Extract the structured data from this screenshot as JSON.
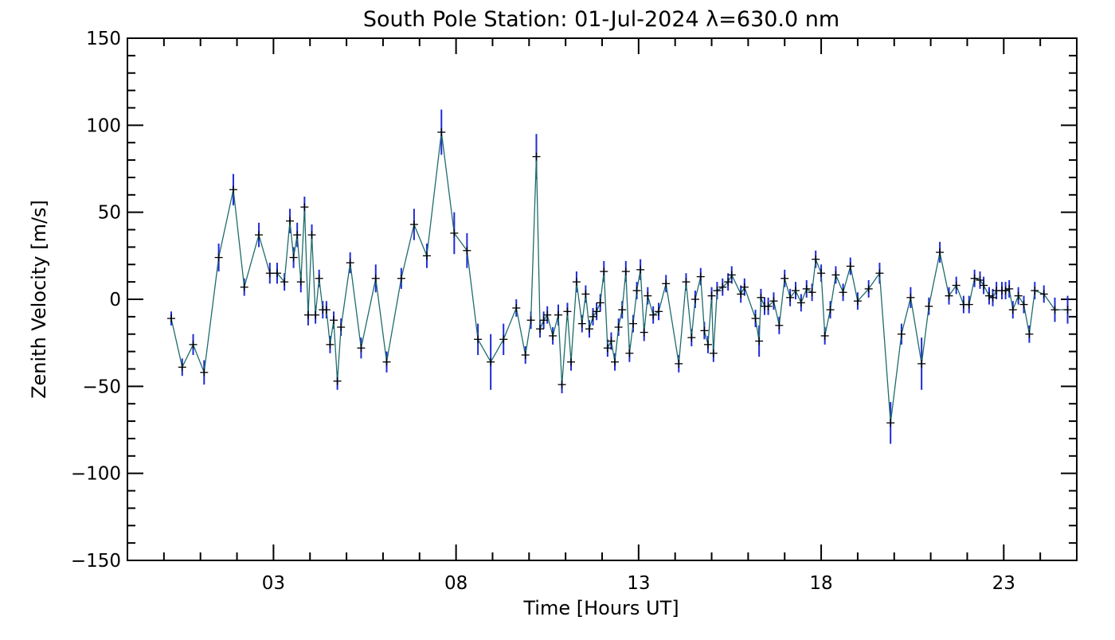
{
  "chart_data": {
    "type": "line",
    "title": "South Pole Station: 01-Jul-2024 λ=630.0 nm",
    "xlabel": "Time [Hours UT]",
    "ylabel": "Zenith Velocity [m/s]",
    "xlim": [
      -1,
      25
    ],
    "ylim": [
      -150,
      150
    ],
    "x_ticks": [
      3,
      8,
      13,
      18,
      23
    ],
    "x_tick_labels": [
      "03",
      "08",
      "13",
      "18",
      "23"
    ],
    "y_ticks": [
      -150,
      -100,
      -50,
      0,
      50,
      100,
      150
    ],
    "y_tick_labels": [
      "−150",
      "−100",
      "−50",
      "0",
      "50",
      "100",
      "150"
    ],
    "grid": false,
    "colors": {
      "line": "#1f6b6b",
      "error_bar": "#1f2bd6",
      "marker": "#000000",
      "axis": "#000000"
    },
    "series": [
      {
        "points": [
          {
            "x": 0.2,
            "y": -11,
            "err": 4
          },
          {
            "x": 0.5,
            "y": -39,
            "err": 5
          },
          {
            "x": 0.8,
            "y": -26,
            "err": 6
          },
          {
            "x": 1.1,
            "y": -42,
            "err": 7
          },
          {
            "x": 1.5,
            "y": 24,
            "err": 8
          },
          {
            "x": 1.9,
            "y": 63,
            "err": 9
          },
          {
            "x": 2.2,
            "y": 7,
            "err": 5
          },
          {
            "x": 2.6,
            "y": 37,
            "err": 7
          },
          {
            "x": 2.9,
            "y": 15,
            "err": 6
          },
          {
            "x": 3.1,
            "y": 15,
            "err": 6
          },
          {
            "x": 3.3,
            "y": 10,
            "err": 5
          },
          {
            "x": 3.45,
            "y": 45,
            "err": 7
          },
          {
            "x": 3.55,
            "y": 24,
            "err": 6
          },
          {
            "x": 3.65,
            "y": 37,
            "err": 7
          },
          {
            "x": 3.75,
            "y": 10,
            "err": 6
          },
          {
            "x": 3.85,
            "y": 53,
            "err": 6
          },
          {
            "x": 3.95,
            "y": -9,
            "err": 6
          },
          {
            "x": 4.05,
            "y": 37,
            "err": 6
          },
          {
            "x": 4.15,
            "y": -9,
            "err": 5
          },
          {
            "x": 4.25,
            "y": 12,
            "err": 5
          },
          {
            "x": 4.35,
            "y": -6,
            "err": 5
          },
          {
            "x": 4.45,
            "y": -6,
            "err": 5
          },
          {
            "x": 4.55,
            "y": -26,
            "err": 5
          },
          {
            "x": 4.65,
            "y": -12,
            "err": 5
          },
          {
            "x": 4.75,
            "y": -47,
            "err": 5
          },
          {
            "x": 4.85,
            "y": -16,
            "err": 5
          },
          {
            "x": 5.1,
            "y": 21,
            "err": 6
          },
          {
            "x": 5.4,
            "y": -28,
            "err": 6
          },
          {
            "x": 5.8,
            "y": 12,
            "err": 8
          },
          {
            "x": 6.1,
            "y": -36,
            "err": 6
          },
          {
            "x": 6.5,
            "y": 12,
            "err": 6
          },
          {
            "x": 6.85,
            "y": 43,
            "err": 9
          },
          {
            "x": 7.2,
            "y": 25,
            "err": 7
          },
          {
            "x": 7.6,
            "y": 96,
            "err": 13
          },
          {
            "x": 7.95,
            "y": 38,
            "err": 12
          },
          {
            "x": 8.3,
            "y": 28,
            "err": 10
          },
          {
            "x": 8.6,
            "y": -23,
            "err": 9
          },
          {
            "x": 8.95,
            "y": -36,
            "err": 16
          },
          {
            "x": 9.3,
            "y": -23,
            "err": 9
          },
          {
            "x": 9.65,
            "y": -5,
            "err": 5
          },
          {
            "x": 9.9,
            "y": -32,
            "err": 5
          },
          {
            "x": 10.05,
            "y": -12,
            "err": 5
          },
          {
            "x": 10.2,
            "y": 82,
            "err": 13
          },
          {
            "x": 10.3,
            "y": -17,
            "err": 5
          },
          {
            "x": 10.4,
            "y": -12,
            "err": 5
          },
          {
            "x": 10.5,
            "y": -9,
            "err": 5
          },
          {
            "x": 10.65,
            "y": -21,
            "err": 5
          },
          {
            "x": 10.8,
            "y": -9,
            "err": 6
          },
          {
            "x": 10.9,
            "y": -49,
            "err": 5
          },
          {
            "x": 11.05,
            "y": -7,
            "err": 5
          },
          {
            "x": 11.15,
            "y": -36,
            "err": 5
          },
          {
            "x": 11.3,
            "y": 10,
            "err": 6
          },
          {
            "x": 11.45,
            "y": -14,
            "err": 5
          },
          {
            "x": 11.55,
            "y": 3,
            "err": 5
          },
          {
            "x": 11.65,
            "y": -17,
            "err": 5
          },
          {
            "x": 11.75,
            "y": -10,
            "err": 5
          },
          {
            "x": 11.85,
            "y": -7,
            "err": 5
          },
          {
            "x": 11.95,
            "y": -2,
            "err": 5
          },
          {
            "x": 12.05,
            "y": 16,
            "err": 6
          },
          {
            "x": 12.15,
            "y": -28,
            "err": 5
          },
          {
            "x": 12.25,
            "y": -24,
            "err": 5
          },
          {
            "x": 12.35,
            "y": -36,
            "err": 5
          },
          {
            "x": 12.45,
            "y": -16,
            "err": 5
          },
          {
            "x": 12.55,
            "y": -6,
            "err": 5
          },
          {
            "x": 12.65,
            "y": 16,
            "err": 6
          },
          {
            "x": 12.75,
            "y": -31,
            "err": 5
          },
          {
            "x": 12.85,
            "y": -14,
            "err": 5
          },
          {
            "x": 12.95,
            "y": 5,
            "err": 5
          },
          {
            "x": 13.05,
            "y": 17,
            "err": 6
          },
          {
            "x": 13.15,
            "y": -19,
            "err": 5
          },
          {
            "x": 13.25,
            "y": 2,
            "err": 5
          },
          {
            "x": 13.4,
            "y": -9,
            "err": 5
          },
          {
            "x": 13.55,
            "y": -7,
            "err": 5
          },
          {
            "x": 13.75,
            "y": 9,
            "err": 5
          },
          {
            "x": 14.1,
            "y": -37,
            "err": 5
          },
          {
            "x": 14.3,
            "y": 10,
            "err": 5
          },
          {
            "x": 14.45,
            "y": -22,
            "err": 5
          },
          {
            "x": 14.55,
            "y": 0,
            "err": 5
          },
          {
            "x": 14.7,
            "y": 13,
            "err": 5
          },
          {
            "x": 14.8,
            "y": -18,
            "err": 5
          },
          {
            "x": 14.9,
            "y": -26,
            "err": 5
          },
          {
            "x": 15.0,
            "y": 2,
            "err": 5
          },
          {
            "x": 15.05,
            "y": -31,
            "err": 5
          },
          {
            "x": 15.15,
            "y": 5,
            "err": 5
          },
          {
            "x": 15.3,
            "y": 7,
            "err": 5
          },
          {
            "x": 15.45,
            "y": 10,
            "err": 5
          },
          {
            "x": 15.55,
            "y": 14,
            "err": 5
          },
          {
            "x": 15.8,
            "y": 3,
            "err": 5
          },
          {
            "x": 15.9,
            "y": 7,
            "err": 5
          },
          {
            "x": 16.2,
            "y": -11,
            "err": 5
          },
          {
            "x": 16.3,
            "y": -24,
            "err": 9
          },
          {
            "x": 16.35,
            "y": 1,
            "err": 5
          },
          {
            "x": 16.45,
            "y": -4,
            "err": 5
          },
          {
            "x": 16.55,
            "y": -4,
            "err": 5
          },
          {
            "x": 16.7,
            "y": -1,
            "err": 5
          },
          {
            "x": 16.85,
            "y": -15,
            "err": 5
          },
          {
            "x": 17.0,
            "y": 12,
            "err": 5
          },
          {
            "x": 17.15,
            "y": 1,
            "err": 5
          },
          {
            "x": 17.3,
            "y": 5,
            "err": 5
          },
          {
            "x": 17.45,
            "y": -2,
            "err": 5
          },
          {
            "x": 17.6,
            "y": 6,
            "err": 5
          },
          {
            "x": 17.75,
            "y": 4,
            "err": 5
          },
          {
            "x": 17.85,
            "y": 23,
            "err": 5
          },
          {
            "x": 18.0,
            "y": 15,
            "err": 5
          },
          {
            "x": 18.1,
            "y": -21,
            "err": 5
          },
          {
            "x": 18.25,
            "y": -6,
            "err": 5
          },
          {
            "x": 18.4,
            "y": 14,
            "err": 5
          },
          {
            "x": 18.6,
            "y": 4,
            "err": 5
          },
          {
            "x": 18.8,
            "y": 19,
            "err": 5
          },
          {
            "x": 19.0,
            "y": -1,
            "err": 5
          },
          {
            "x": 19.3,
            "y": 6,
            "err": 5
          },
          {
            "x": 19.6,
            "y": 15,
            "err": 6
          },
          {
            "x": 19.9,
            "y": -71,
            "err": 12
          },
          {
            "x": 20.2,
            "y": -20,
            "err": 6
          },
          {
            "x": 20.45,
            "y": 1,
            "err": 6
          },
          {
            "x": 20.75,
            "y": -37,
            "err": 15
          },
          {
            "x": 20.95,
            "y": -4,
            "err": 5
          },
          {
            "x": 21.25,
            "y": 27,
            "err": 6
          },
          {
            "x": 21.5,
            "y": 2,
            "err": 5
          },
          {
            "x": 21.7,
            "y": 8,
            "err": 5
          },
          {
            "x": 21.9,
            "y": -3,
            "err": 5
          },
          {
            "x": 22.05,
            "y": -3,
            "err": 5
          },
          {
            "x": 22.2,
            "y": 12,
            "err": 5
          },
          {
            "x": 22.35,
            "y": 11,
            "err": 5
          },
          {
            "x": 22.45,
            "y": 8,
            "err": 5
          },
          {
            "x": 22.6,
            "y": 2,
            "err": 5
          },
          {
            "x": 22.7,
            "y": 1,
            "err": 5
          },
          {
            "x": 22.8,
            "y": 5,
            "err": 5
          },
          {
            "x": 22.95,
            "y": 5,
            "err": 5
          },
          {
            "x": 23.05,
            "y": 5,
            "err": 5
          },
          {
            "x": 23.15,
            "y": 6,
            "err": 5
          },
          {
            "x": 23.25,
            "y": -6,
            "err": 5
          },
          {
            "x": 23.4,
            "y": 2,
            "err": 5
          },
          {
            "x": 23.55,
            "y": -3,
            "err": 5
          },
          {
            "x": 23.7,
            "y": -20,
            "err": 5
          },
          {
            "x": 23.85,
            "y": 5,
            "err": 5
          },
          {
            "x": 24.1,
            "y": 3,
            "err": 5
          },
          {
            "x": 24.4,
            "y": -6,
            "err": 7
          },
          {
            "x": 24.75,
            "y": -6,
            "err": 8
          }
        ]
      }
    ]
  }
}
